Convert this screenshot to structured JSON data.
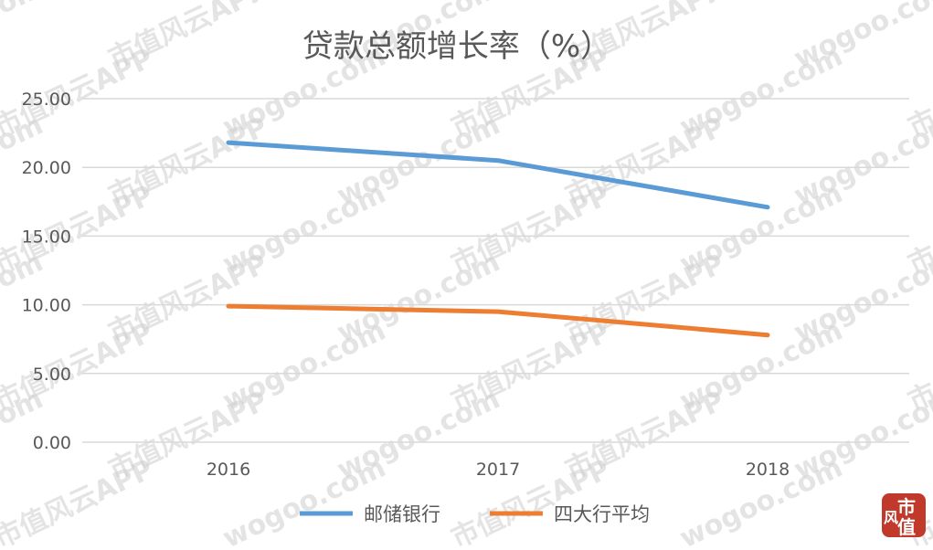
{
  "chart_data": {
    "type": "line",
    "title": "贷款总额增长率（%）",
    "categories": [
      "2016",
      "2017",
      "2018"
    ],
    "yticks": [
      "0.00",
      "5.00",
      "10.00",
      "15.00",
      "20.00",
      "25.00"
    ],
    "ylim": [
      0,
      25
    ],
    "grid": true,
    "legend_position": "bottom",
    "series": [
      {
        "name": "邮储银行",
        "color": "#5b9bd5",
        "values": [
          21.8,
          20.5,
          17.1
        ]
      },
      {
        "name": "四大行平均",
        "color": "#ed7d31",
        "values": [
          9.9,
          9.5,
          7.8
        ]
      }
    ]
  },
  "watermark": {
    "lines": [
      "wogoo.com",
      "市值风云APP"
    ]
  },
  "logo": {
    "chars": [
      "风",
      "市",
      "值"
    ],
    "color": "#c0392b"
  }
}
